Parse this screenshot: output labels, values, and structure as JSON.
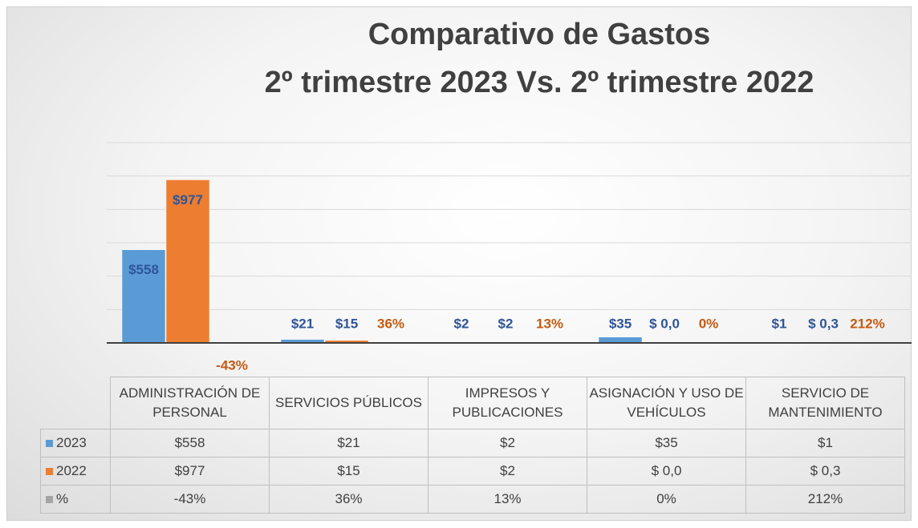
{
  "chart_data": {
    "type": "bar",
    "title": "Comparativo de Gastos",
    "subtitle": "2º trimestre 2023 Vs. 2º trimestre 2022",
    "categories": [
      "ADMINISTRACIÓN DE PERSONAL",
      "SERVICIOS PÚBLICOS",
      "IMPRESOS Y PUBLICACIONES",
      "ASIGNACIÓN Y USO DE VEHÍCULOS",
      "SERVICIO DE MANTENIMIENTO"
    ],
    "series": [
      {
        "name": "2023",
        "color": "#5b9bd5",
        "values": [
          558,
          21,
          2,
          35,
          1
        ],
        "value_labels": [
          "$558",
          "$21",
          "$2",
          "$35",
          "$1"
        ]
      },
      {
        "name": "2022",
        "color": "#ed7d31",
        "values": [
          977,
          15,
          2,
          0,
          0.3
        ],
        "value_labels": [
          "$977",
          "$15",
          "$2",
          "$ 0,0",
          "$ 0,3"
        ]
      },
      {
        "name": "%",
        "color": "#a5a5a5",
        "values": [
          -43,
          36,
          13,
          0,
          212
        ],
        "value_labels": [
          "-43%",
          "36%",
          "13%",
          "0%",
          "212%"
        ]
      }
    ],
    "ylim": [
      0,
      1200
    ],
    "yticks": [
      0,
      200,
      400,
      600,
      800,
      1000,
      1200
    ],
    "grid": true,
    "data_table": true
  }
}
